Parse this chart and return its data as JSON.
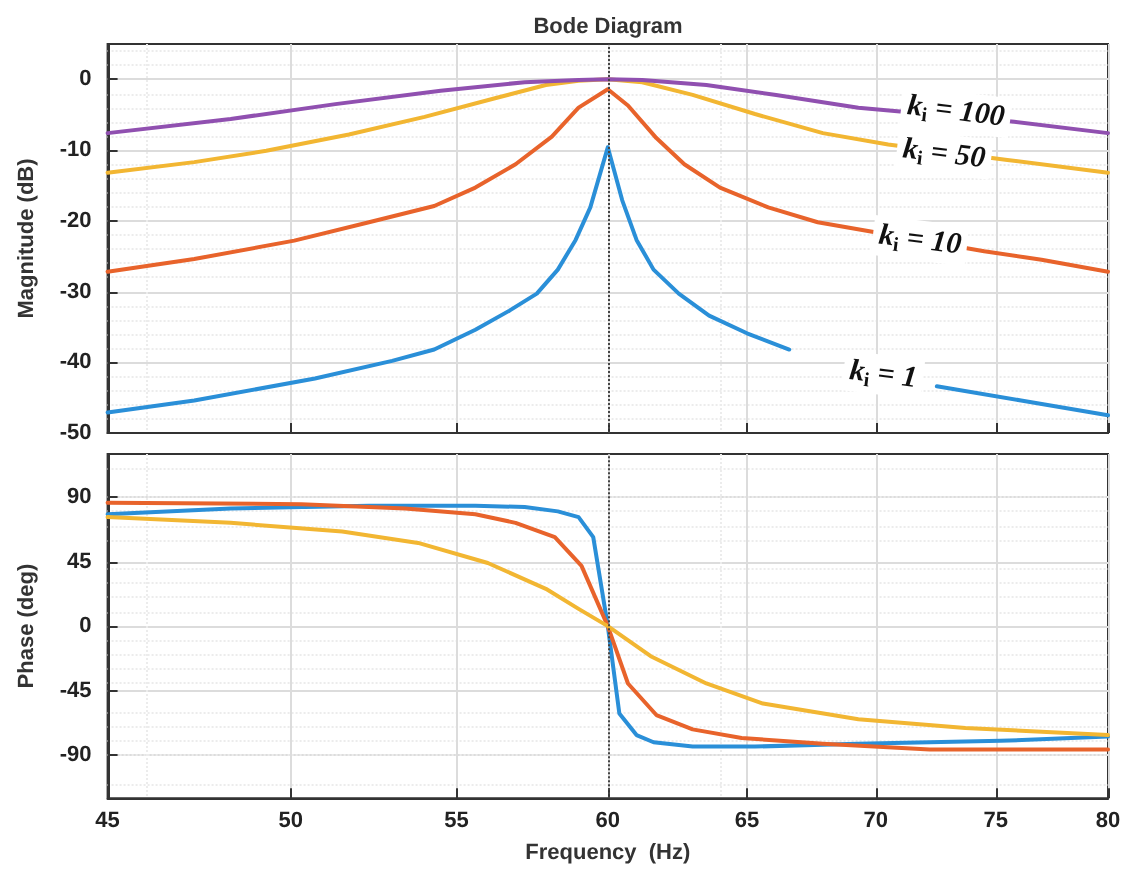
{
  "chart_data": [
    {
      "type": "line",
      "title": "Bode Diagram",
      "ylabel": "Magnitude (dB)",
      "log": "x",
      "xlim": [
        45,
        80
      ],
      "xticks": [
        45,
        50,
        55,
        60,
        65,
        70,
        75,
        80
      ],
      "ylim": [
        -50,
        5
      ],
      "yticks": [
        -50,
        -40,
        -30,
        -20,
        -10,
        0
      ],
      "grid": true,
      "tick_labels": "y",
      "ref_lines": [
        {
          "axis": "x",
          "value": 60,
          "color": "#444444",
          "line_style": "dotted"
        }
      ],
      "annotations": [
        {
          "text": "k$_{i}$ = 100",
          "x": 73.3,
          "y": -4.6
        },
        {
          "text": "k$_{i}$ = 50",
          "x": 72.8,
          "y": -10.6
        },
        {
          "text": "k$_{i}$ = 10",
          "x": 71.8,
          "y": -22.8
        },
        {
          "text": "k$_{i}$ = 1",
          "x": 70.3,
          "y": -41.8
        }
      ],
      "series": [
        {
          "color": "#2a8fd8",
          "x": [
            45,
            47.3,
            50.7,
            53.0,
            54.3,
            55.6,
            56.7,
            57.6,
            58.3,
            58.9,
            59.4,
            60,
            60.5,
            61.0,
            61.6,
            62.5,
            63.6,
            65.0,
            66.6,
            69.1,
            72.5,
            76.1,
            80
          ],
          "values": [
            -47.1,
            -45.4,
            -42.3,
            -39.8,
            -38.2,
            -35.4,
            -32.7,
            -30.3,
            -26.9,
            -22.7,
            -18.1,
            -9.6,
            -17.1,
            -22.7,
            -26.9,
            -30.3,
            -33.4,
            -35.9,
            -38.2,
            null,
            -43.4,
            -45.4,
            -47.5
          ]
        },
        {
          "color": "#e8632b",
          "x": [
            45,
            47.3,
            50.1,
            52.3,
            54.3,
            55.6,
            56.9,
            58.1,
            59.0,
            60,
            60.7,
            61.7,
            62.7,
            64.0,
            65.8,
            67.7,
            74.5,
            77.0,
            80
          ],
          "values": [
            -27.2,
            -25.4,
            -22.8,
            -20.2,
            -17.9,
            -15.3,
            -12.0,
            -8.1,
            -4.0,
            -1.4,
            -3.7,
            -8.3,
            -12.0,
            -15.3,
            -18.1,
            -20.2,
            -24.3,
            -25.5,
            -27.2
          ]
        },
        {
          "color": "#f2b632",
          "x": [
            45,
            47.3,
            49.3,
            51.7,
            54.0,
            56.2,
            57.9,
            59.0,
            60,
            61.2,
            63.0,
            65.3,
            67.9,
            70.5,
            75.5,
            80
          ],
          "values": [
            -13.2,
            -11.7,
            -10.1,
            -7.8,
            -5.3,
            -2.7,
            -0.8,
            -0.2,
            0,
            -0.4,
            -2.2,
            -4.9,
            -7.6,
            -9.2,
            -11.4,
            -13.2
          ]
        },
        {
          "color": "#9050b0",
          "x": [
            45,
            48.3,
            51.3,
            54.5,
            57.2,
            59.0,
            60,
            61.2,
            63.5,
            66.1,
            69.3,
            75.8,
            80
          ],
          "values": [
            -7.6,
            -5.6,
            -3.5,
            -1.6,
            -0.4,
            -0.1,
            0,
            -0.1,
            -0.8,
            -2.2,
            -4.0,
            -6.0,
            -7.6
          ]
        }
      ]
    },
    {
      "type": "line",
      "xlabel": "Frequency  (Hz)",
      "ylabel": "Phase (deg)",
      "log": "x",
      "xlim": [
        45,
        80
      ],
      "xticks": [
        45,
        50,
        55,
        60,
        65,
        70,
        75,
        80
      ],
      "ylim": [
        -120,
        120
      ],
      "yticks": [
        -90,
        -45,
        0,
        45,
        90
      ],
      "grid": true,
      "ref_lines": [
        {
          "axis": "x",
          "value": 60,
          "color": "#444444",
          "line_style": "dotted"
        }
      ],
      "series": [
        {
          "color": "#2a8fd8",
          "x": [
            45,
            48.3,
            52.3,
            55.6,
            57.2,
            58.3,
            59.0,
            59.5,
            60,
            60.4,
            61.0,
            61.6,
            63.0,
            65.3,
            69.3,
            75.2,
            80
          ],
          "values": [
            78,
            82,
            84,
            84,
            83,
            80,
            76,
            62,
            0,
            -61,
            -76,
            -81,
            -84,
            -84,
            -82,
            -80,
            -77
          ]
        },
        {
          "color": "#e8632b",
          "x": [
            45,
            50.3,
            53.4,
            55.6,
            56.9,
            58.2,
            59.1,
            60,
            60.7,
            61.7,
            63.0,
            64.8,
            67.9,
            72.2,
            80
          ],
          "values": [
            86,
            85,
            82,
            78,
            72,
            62,
            42,
            0,
            -40,
            -62,
            -72,
            -78,
            -82,
            -86,
            -86
          ]
        },
        {
          "color": "#f2b632",
          "x": [
            45,
            48.3,
            51.5,
            53.8,
            56.0,
            57.9,
            59.0,
            60,
            61.5,
            63.5,
            65.6,
            69.3,
            73.7,
            80
          ],
          "values": [
            76,
            72,
            66,
            58,
            44,
            26,
            12,
            0,
            -21,
            -40,
            -54,
            -65,
            -71,
            -76
          ]
        }
      ]
    }
  ]
}
